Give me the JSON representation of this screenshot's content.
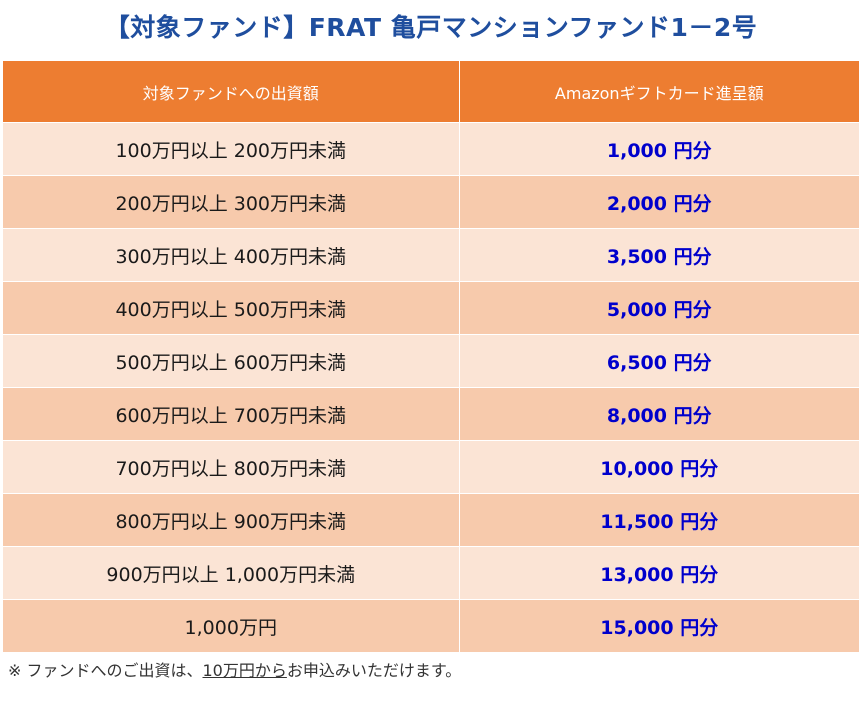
{
  "title": "【対象ファンド】FRAT 亀戸マンションファンド1－2号",
  "table": {
    "headers": {
      "investment": "対象ファンドへの出資額",
      "reward": "Amazonギフトカード進呈額"
    },
    "rows": [
      {
        "range": "100万円以上 200万円未満",
        "reward": "1,000 円分"
      },
      {
        "range": "200万円以上 300万円未満",
        "reward": "2,000 円分"
      },
      {
        "range": "300万円以上 400万円未満",
        "reward": "3,500 円分"
      },
      {
        "range": "400万円以上 500万円未満",
        "reward": "5,000 円分"
      },
      {
        "range": "500万円以上 600万円未満",
        "reward": "6,500 円分"
      },
      {
        "range": "600万円以上 700万円未満",
        "reward": "8,000 円分"
      },
      {
        "range": "700万円以上 800万円未満",
        "reward": "10,000 円分"
      },
      {
        "range": "800万円以上 900万円未満",
        "reward": "11,500 円分"
      },
      {
        "range": "900万円以上 1,000万円未満",
        "reward": "13,000 円分"
      },
      {
        "range": "1,000万円",
        "reward": "15,000 円分"
      }
    ]
  },
  "note": {
    "prefix": "※ ファンドへのご出資は、",
    "underlined": "10万円から",
    "suffix": "お申込みいただけます。"
  },
  "colors": {
    "title": "#1f4e9e",
    "header_bg": "#ed7d31",
    "row_light": "#fbe4d5",
    "row_dark": "#f7caac",
    "amount_text": "#0000cc"
  }
}
